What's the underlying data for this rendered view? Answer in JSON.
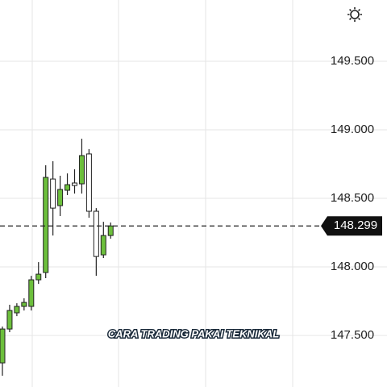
{
  "chart_data": {
    "type": "candlestick",
    "open": [
      147.3,
      147.547,
      147.665,
      147.712,
      147.712,
      147.906,
      147.959,
      148.641,
      148.447,
      148.559,
      148.612,
      148.606,
      148.824,
      148.406,
      148.088,
      148.229
    ],
    "high": [
      147.565,
      147.724,
      147.735,
      147.771,
      147.935,
      148.035,
      148.741,
      148.771,
      148.665,
      148.682,
      148.712,
      148.935,
      148.859,
      148.429,
      148.329,
      148.324
    ],
    "low": [
      147.206,
      147.524,
      147.641,
      147.682,
      147.682,
      147.876,
      147.918,
      148.229,
      148.371,
      148.524,
      148.535,
      148.535,
      148.359,
      147.935,
      148.065,
      148.206
    ],
    "close": [
      147.547,
      147.682,
      147.712,
      147.741,
      147.906,
      147.947,
      148.653,
      148.429,
      148.565,
      148.6,
      148.594,
      148.812,
      148.406,
      148.076,
      148.229,
      148.299
    ],
    "up_color": "#6cbf3c",
    "down_color": "#ffffff",
    "ylim": [
      147.124,
      149.947
    ],
    "yticks": [
      {
        "value": 147.5,
        "label": "147.500"
      },
      {
        "value": 148,
        "label": "148.000"
      },
      {
        "value": 148.5,
        "label": "148.500"
      },
      {
        "value": 149,
        "label": "149.000"
      },
      {
        "value": 149.5,
        "label": "149.500"
      }
    ],
    "grid": true,
    "last_price": 148.299,
    "caption": "CARA TRADING PAKAI TEKNIKAL"
  }
}
